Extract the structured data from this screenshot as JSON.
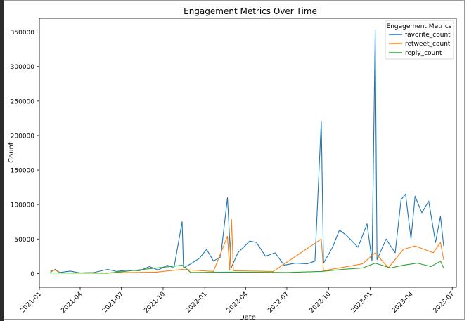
{
  "chart_data": {
    "type": "line",
    "title": "Engagement Metrics Over Time",
    "xlabel": "Date",
    "ylabel": "Count",
    "xlim": [
      "2021-01-01",
      "2023-07-10"
    ],
    "ylim": [
      -20000,
      370000
    ],
    "x_ticks": [
      "2021-01",
      "2021-04",
      "2021-07",
      "2021-10",
      "2022-01",
      "2022-04",
      "2022-07",
      "2022-10",
      "2023-01",
      "2023-04",
      "2023-07"
    ],
    "y_ticks": [
      0,
      50000,
      100000,
      150000,
      200000,
      250000,
      300000,
      350000
    ],
    "legend": {
      "title": "Engagement Metrics",
      "placement": "top-right"
    },
    "grid": false,
    "series": [
      {
        "name": "favorite_count",
        "color": "#1f77b4",
        "points": [
          [
            "2021-01-25",
            2000
          ],
          [
            "2021-02-05",
            6000
          ],
          [
            "2021-02-15",
            1500
          ],
          [
            "2021-03-10",
            3500
          ],
          [
            "2021-04-01",
            800
          ],
          [
            "2021-05-01",
            1500
          ],
          [
            "2021-06-01",
            6000
          ],
          [
            "2021-06-20",
            3000
          ],
          [
            "2021-07-15",
            5000
          ],
          [
            "2021-08-10",
            4000
          ],
          [
            "2021-09-01",
            10000
          ],
          [
            "2021-09-20",
            5000
          ],
          [
            "2021-10-10",
            12000
          ],
          [
            "2021-10-25",
            8000
          ],
          [
            "2021-11-12",
            75000
          ],
          [
            "2021-11-15",
            8000
          ],
          [
            "2021-12-01",
            14000
          ],
          [
            "2021-12-20",
            22000
          ],
          [
            "2022-01-05",
            35000
          ],
          [
            "2022-01-20",
            18000
          ],
          [
            "2022-02-05",
            24000
          ],
          [
            "2022-02-20",
            110000
          ],
          [
            "2022-02-28",
            8000
          ],
          [
            "2022-03-15",
            30000
          ],
          [
            "2022-04-10",
            47000
          ],
          [
            "2022-04-25",
            45000
          ],
          [
            "2022-05-15",
            25000
          ],
          [
            "2022-06-05",
            30000
          ],
          [
            "2022-06-25",
            12000
          ],
          [
            "2022-07-20",
            15000
          ],
          [
            "2022-08-15",
            14000
          ],
          [
            "2022-09-01",
            18000
          ],
          [
            "2022-09-15",
            221000
          ],
          [
            "2022-09-20",
            15000
          ],
          [
            "2022-10-10",
            38000
          ],
          [
            "2022-10-25",
            63000
          ],
          [
            "2022-11-10",
            55000
          ],
          [
            "2022-12-05",
            38000
          ],
          [
            "2022-12-25",
            72000
          ],
          [
            "2023-01-05",
            18000
          ],
          [
            "2023-01-12",
            353000
          ],
          [
            "2023-01-16",
            20000
          ],
          [
            "2023-02-05",
            50000
          ],
          [
            "2023-02-25",
            30000
          ],
          [
            "2023-03-10",
            107000
          ],
          [
            "2023-03-20",
            115000
          ],
          [
            "2023-04-01",
            50000
          ],
          [
            "2023-04-10",
            112000
          ],
          [
            "2023-04-25",
            88000
          ],
          [
            "2023-05-10",
            105000
          ],
          [
            "2023-05-25",
            45000
          ],
          [
            "2023-06-05",
            83000
          ],
          [
            "2023-06-12",
            40000
          ]
        ]
      },
      {
        "name": "retweet_count",
        "color": "#ff7f0e",
        "points": [
          [
            "2021-01-25",
            4000
          ],
          [
            "2021-02-05",
            5000
          ],
          [
            "2021-02-15",
            800
          ],
          [
            "2021-06-01",
            1000
          ],
          [
            "2021-09-15",
            2000
          ],
          [
            "2021-11-12",
            6000
          ],
          [
            "2022-01-20",
            3000
          ],
          [
            "2022-02-20",
            54000
          ],
          [
            "2022-02-25",
            5000
          ],
          [
            "2022-03-01",
            78000
          ],
          [
            "2022-03-05",
            4000
          ],
          [
            "2022-06-01",
            3000
          ],
          [
            "2022-09-15",
            50000
          ],
          [
            "2022-09-20",
            4000
          ],
          [
            "2022-12-15",
            14000
          ],
          [
            "2023-01-12",
            30000
          ],
          [
            "2023-02-10",
            8000
          ],
          [
            "2023-03-15",
            35000
          ],
          [
            "2023-04-10",
            40000
          ],
          [
            "2023-05-20",
            30000
          ],
          [
            "2023-06-05",
            45000
          ],
          [
            "2023-06-12",
            20000
          ]
        ]
      },
      {
        "name": "reply_count",
        "color": "#2ca02c",
        "points": [
          [
            "2021-01-25",
            800
          ],
          [
            "2021-06-01",
            500
          ],
          [
            "2021-11-12",
            12000
          ],
          [
            "2021-12-01",
            1500
          ],
          [
            "2022-03-01",
            2000
          ],
          [
            "2022-07-01",
            1500
          ],
          [
            "2022-09-15",
            3000
          ],
          [
            "2022-11-01",
            6000
          ],
          [
            "2022-12-15",
            8000
          ],
          [
            "2023-01-12",
            15000
          ],
          [
            "2023-02-15",
            8000
          ],
          [
            "2023-03-15",
            12000
          ],
          [
            "2023-04-15",
            15000
          ],
          [
            "2023-05-15",
            10000
          ],
          [
            "2023-06-05",
            18000
          ],
          [
            "2023-06-12",
            8000
          ]
        ]
      }
    ]
  }
}
